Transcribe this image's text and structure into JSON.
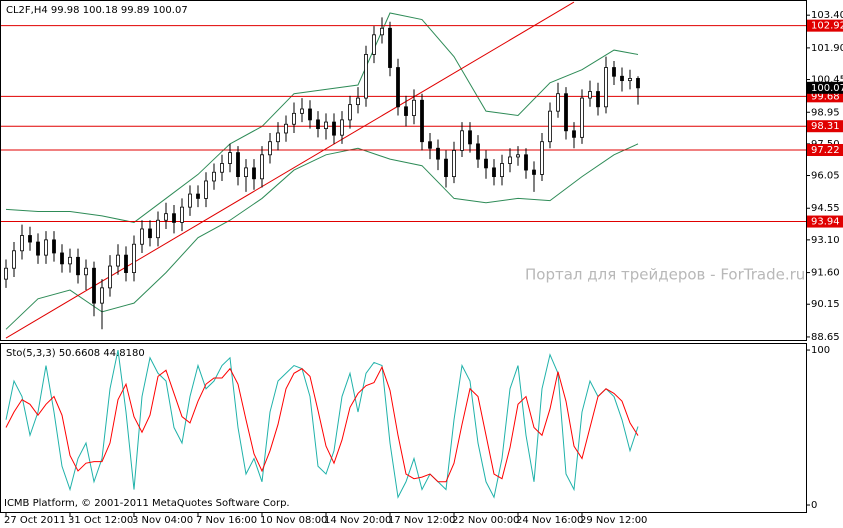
{
  "window": {
    "copyright": "ICMB Platform, © 2001-2011 MetaQuotes Software Corp.",
    "watermark": "Портал для трейдеров - ForTrade.ru"
  },
  "chart_data": [
    {
      "type": "candlestick",
      "title": "CL2F,H4  99.98 100.18 99.89 100.07",
      "categories": [
        "27 Oct 2011",
        null,
        null,
        null,
        null,
        null,
        null,
        null,
        "31 Oct 12:00",
        null,
        null,
        null,
        null,
        null,
        null,
        null,
        "3 Nov 04:00",
        null,
        null,
        null,
        null,
        null,
        null,
        null,
        "7 Nov 16:00",
        null,
        null,
        null,
        null,
        null,
        null,
        null,
        "10 Nov 08:00",
        null,
        null,
        null,
        null,
        null,
        null,
        null,
        "14 Nov 20:00",
        null,
        null,
        null,
        null,
        null,
        null,
        null,
        "17 Nov 12:00",
        null,
        null,
        null,
        null,
        null,
        null,
        null,
        "22 Nov 00:00",
        null,
        null,
        null,
        null,
        null,
        null,
        null,
        "24 Nov 16:00",
        null,
        null,
        null,
        null,
        null,
        null,
        null,
        "29 Nov 12:00",
        null,
        null,
        null,
        null,
        null,
        null,
        null
      ],
      "open": [
        91.3,
        91.8,
        92.6,
        93.3,
        93.0,
        92.4,
        93.1,
        92.5,
        92.0,
        92.3,
        91.5,
        91.8,
        90.2,
        90.9,
        91.9,
        92.4,
        91.6,
        92.9,
        93.6,
        93.2,
        94.0,
        94.3,
        93.9,
        94.6,
        95.2,
        95.0,
        95.8,
        96.2,
        96.6,
        97.1,
        96.0,
        96.4,
        95.9,
        97.0,
        97.6,
        98.0,
        98.4,
        98.9,
        99.1,
        98.6,
        98.2,
        98.5,
        97.9,
        98.6,
        99.3,
        99.6,
        101.6,
        102.5,
        102.8,
        101.0,
        99.2,
        98.8,
        99.5,
        97.6,
        97.3,
        96.8,
        96.0,
        97.2,
        98.1,
        97.5,
        96.8,
        96.4,
        96.0,
        96.6,
        96.9,
        97.0,
        96.3,
        96.1,
        97.6,
        99.0,
        99.8,
        98.1,
        97.8,
        99.6,
        99.9,
        99.2,
        101.0,
        100.6,
        100.4,
        100.5
      ],
      "high": [
        92.2,
        93.0,
        93.8,
        93.7,
        93.4,
        93.5,
        93.5,
        92.9,
        92.7,
        92.7,
        92.2,
        92.1,
        91.3,
        92.4,
        92.9,
        92.8,
        93.3,
        94.0,
        94.0,
        94.4,
        94.8,
        94.7,
        95.0,
        95.6,
        95.6,
        96.2,
        96.6,
        97.0,
        97.5,
        97.4,
        96.8,
        96.8,
        97.4,
        98.0,
        98.5,
        98.8,
        99.4,
        99.6,
        99.5,
        99.0,
        98.9,
        98.9,
        99.0,
        99.7,
        100.1,
        102.0,
        102.9,
        103.3,
        103.1,
        101.4,
        99.7,
        100.0,
        99.8,
        98.0,
        97.7,
        97.2,
        97.6,
        98.5,
        98.5,
        97.9,
        97.2,
        96.8,
        97.0,
        97.3,
        97.4,
        97.3,
        96.7,
        98.0,
        99.4,
        100.3,
        100.1,
        98.5,
        100.0,
        100.4,
        100.3,
        101.5,
        101.3,
        101.0,
        100.9,
        100.6
      ],
      "low": [
        90.9,
        91.4,
        92.2,
        92.6,
        92.0,
        92.0,
        92.1,
        91.6,
        91.6,
        91.1,
        90.8,
        89.6,
        89.0,
        90.5,
        91.5,
        91.2,
        91.2,
        92.5,
        92.8,
        92.8,
        93.6,
        93.4,
        93.5,
        94.2,
        94.6,
        94.6,
        95.4,
        95.8,
        96.2,
        95.6,
        95.3,
        95.4,
        95.5,
        96.6,
        97.2,
        97.6,
        98.0,
        98.5,
        98.2,
        97.8,
        97.7,
        97.5,
        97.5,
        98.2,
        98.9,
        99.2,
        101.2,
        102.1,
        100.6,
        98.8,
        98.3,
        98.4,
        97.2,
        96.8,
        96.3,
        95.5,
        95.7,
        96.9,
        97.1,
        96.4,
        95.9,
        95.6,
        95.6,
        96.2,
        96.5,
        95.9,
        95.3,
        95.8,
        97.3,
        98.7,
        97.7,
        97.3,
        97.5,
        99.2,
        98.8,
        98.9,
        100.2,
        99.9,
        100.0,
        99.3
      ],
      "close": [
        91.8,
        92.6,
        93.3,
        93.0,
        92.4,
        93.1,
        92.5,
        92.0,
        92.3,
        91.5,
        91.8,
        90.2,
        90.9,
        91.9,
        92.4,
        91.6,
        92.9,
        93.6,
        93.2,
        94.0,
        94.3,
        93.9,
        94.6,
        95.2,
        95.0,
        95.8,
        96.2,
        96.6,
        97.1,
        96.0,
        96.4,
        95.9,
        97.0,
        97.6,
        98.0,
        98.4,
        98.9,
        99.1,
        98.6,
        98.2,
        98.5,
        97.9,
        98.6,
        99.3,
        99.6,
        101.6,
        102.5,
        102.8,
        101.0,
        99.2,
        98.8,
        99.5,
        97.6,
        97.3,
        96.8,
        96.0,
        97.2,
        98.1,
        97.5,
        96.8,
        96.4,
        96.0,
        96.6,
        96.9,
        97.0,
        96.3,
        96.1,
        97.6,
        99.0,
        99.8,
        98.1,
        97.8,
        99.6,
        99.9,
        99.2,
        101.0,
        100.6,
        100.4,
        100.5,
        100.07
      ],
      "up_color": "#ffffff",
      "down_color": "#000000",
      "ylim": [
        88.51,
        104.05
      ],
      "yticks": [
        {
          "value": 103.4,
          "label": "103.40"
        },
        {
          "value": 101.9,
          "label": "101.90"
        },
        100.45,
        98.95,
        {
          "value": 97.5,
          "label": "97.50"
        },
        96.05,
        94.55,
        {
          "value": 93.1,
          "label": "93.10"
        },
        {
          "value": 91.6,
          "label": "91.60"
        },
        90.15,
        88.65
      ],
      "bands": {
        "color": "#2e8b57",
        "x": [
          0,
          4,
          8,
          12,
          16,
          20,
          24,
          28,
          32,
          36,
          40,
          44,
          48,
          52,
          56,
          60,
          64,
          68,
          72,
          76,
          79
        ],
        "upper": [
          94.5,
          94.4,
          94.4,
          94.2,
          93.9,
          95.0,
          96.1,
          97.5,
          98.3,
          99.8,
          100.0,
          100.2,
          103.5,
          103.2,
          101.5,
          99.0,
          98.8,
          100.3,
          100.9,
          101.8,
          101.6
        ],
        "lower": [
          89.0,
          90.4,
          90.8,
          89.8,
          90.2,
          91.6,
          93.2,
          94.0,
          95.0,
          96.3,
          97.0,
          97.3,
          96.8,
          96.5,
          95.0,
          94.8,
          95.0,
          94.9,
          96.0,
          97.0,
          97.5
        ]
      },
      "levels": [
        102.92,
        99.68,
        98.31,
        97.22,
        93.94
      ],
      "level_color": "#e00000",
      "trendline": {
        "x": [
          0,
          71
        ],
        "y": [
          88.6,
          104.0
        ],
        "color": "#e00000"
      },
      "current_price": 100.07
    },
    {
      "type": "line",
      "title": "Sto(5,3,3) 50.6608 44.8180",
      "ylim": [
        -4.5,
        103.9
      ],
      "yticks": [
        0,
        100
      ],
      "series": [
        {
          "color": "#20b2aa",
          "values": [
            55,
            80,
            70,
            45,
            60,
            90,
            60,
            25,
            10,
            30,
            40,
            15,
            30,
            75,
            100,
            60,
            10,
            70,
            95,
            85,
            80,
            50,
            40,
            70,
            90,
            75,
            80,
            90,
            95,
            50,
            20,
            30,
            15,
            60,
            80,
            85,
            90,
            88,
            70,
            25,
            20,
            35,
            70,
            85,
            60,
            85,
            92,
            90,
            40,
            5,
            15,
            30,
            10,
            20,
            15,
            10,
            55,
            90,
            80,
            40,
            15,
            5,
            30,
            75,
            90,
            45,
            15,
            75,
            97,
            85,
            20,
            10,
            60,
            80,
            70,
            75,
            70,
            55,
            35,
            50.6608
          ]
        },
        {
          "color": "#ff0000",
          "values": [
            50,
            60,
            68,
            65,
            58,
            65,
            70,
            58,
            32,
            22,
            27,
            28,
            28,
            40,
            68,
            78,
            57,
            47,
            58,
            83,
            87,
            72,
            57,
            53,
            67,
            78,
            82,
            82,
            88,
            78,
            55,
            33,
            22,
            35,
            52,
            75,
            85,
            88,
            83,
            61,
            38,
            27,
            42,
            63,
            72,
            77,
            79,
            89,
            74,
            45,
            20,
            17,
            18,
            20,
            15,
            15,
            27,
            52,
            75,
            70,
            45,
            20,
            17,
            37,
            65,
            70,
            50,
            45,
            62,
            86,
            67,
            38,
            30,
            50,
            70,
            75,
            72,
            67,
            53,
            44.818
          ]
        }
      ]
    }
  ]
}
